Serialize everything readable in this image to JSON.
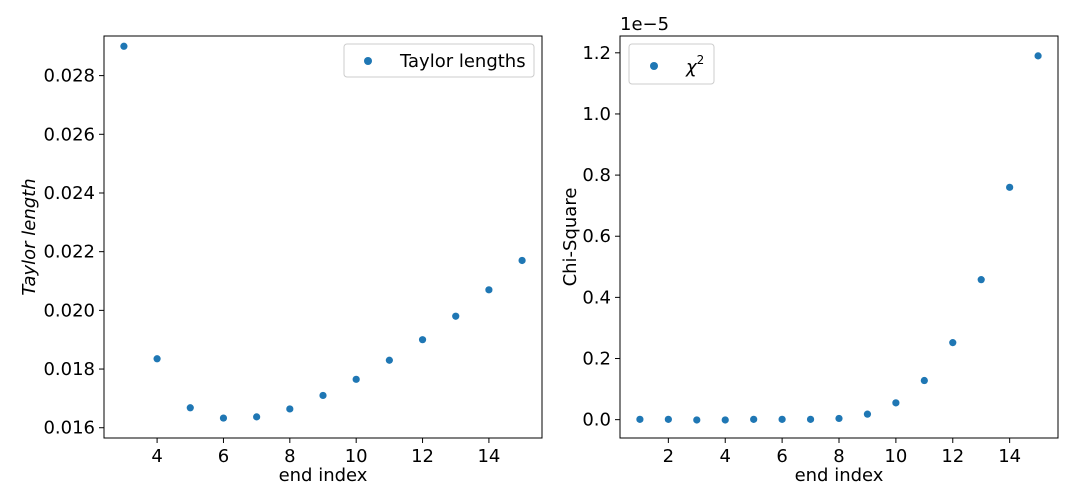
{
  "colors": {
    "marker": "#1f77b4",
    "axis": "#000000",
    "legend_border": "#cccccc"
  },
  "chart_data": [
    {
      "type": "scatter",
      "title": "",
      "xlabel": "end index",
      "ylabel": "Taylor length",
      "xlim": [
        2.4,
        15.6
      ],
      "ylim": [
        0.01565,
        0.02935
      ],
      "xticks": [
        4,
        6,
        8,
        10,
        12,
        14
      ],
      "xtick_labels": [
        "4",
        "6",
        "8",
        "10",
        "12",
        "14"
      ],
      "yticks": [
        0.016,
        0.018,
        0.02,
        0.022,
        0.024,
        0.026,
        0.028
      ],
      "ytick_labels": [
        "0.016",
        "0.018",
        "0.020",
        "0.022",
        "0.024",
        "0.026",
        "0.028"
      ],
      "offset_text": "",
      "grid": false,
      "legend_position": "top-right",
      "series": [
        {
          "name": "Taylor lengths",
          "x": [
            3,
            4,
            5,
            6,
            7,
            8,
            9,
            10,
            11,
            12,
            13,
            14,
            15
          ],
          "y": [
            0.029,
            0.01835,
            0.01668,
            0.01633,
            0.01637,
            0.01664,
            0.0171,
            0.01765,
            0.0183,
            0.019,
            0.0198,
            0.0207,
            0.0217
          ]
        }
      ]
    },
    {
      "type": "scatter",
      "title": "",
      "xlabel": "end index",
      "ylabel": "Chi-Square",
      "xlim": [
        0.3,
        15.7
      ],
      "ylim": [
        -0.06,
        1.255
      ],
      "xticks": [
        2,
        4,
        6,
        8,
        10,
        12,
        14
      ],
      "xtick_labels": [
        "2",
        "4",
        "6",
        "8",
        "10",
        "12",
        "14"
      ],
      "yticks": [
        0.0,
        0.2,
        0.4,
        0.6,
        0.8,
        1.0,
        1.2
      ],
      "ytick_labels": [
        "0.0",
        "0.2",
        "0.4",
        "0.6",
        "0.8",
        "1.0",
        "1.2"
      ],
      "offset_text": "1e−5",
      "grid": false,
      "legend_position": "top-left",
      "series": [
        {
          "name": "χ",
          "name_superscript": "2",
          "x": [
            1,
            2,
            3,
            4,
            5,
            6,
            7,
            8,
            9,
            10,
            11,
            12,
            13,
            14,
            15
          ],
          "y": [
            0.001,
            0.001,
            -0.001,
            -0.001,
            0.001,
            0.001,
            0.001,
            0.004,
            0.018,
            0.055,
            0.128,
            0.252,
            0.458,
            0.76,
            1.19
          ]
        }
      ]
    }
  ]
}
